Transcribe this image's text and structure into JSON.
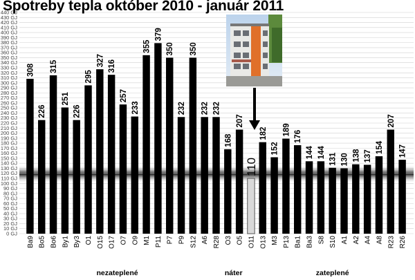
{
  "chart_data": {
    "type": "bar",
    "title": "Spotreby tepla október 2010 - január 2011",
    "ylim": [
      0,
      440
    ],
    "ytick_step": 10,
    "ytick_unit": "GJ",
    "grid": true,
    "categories": [
      "Ba9",
      "Bo5",
      "Bo6",
      "By1",
      "By3",
      "O1",
      "O15",
      "O17",
      "O7",
      "O9",
      "M1",
      "P11",
      "P7",
      "P9",
      "S12",
      "A6",
      "R28",
      "O3",
      "O5",
      "O11",
      "O13",
      "M3",
      "P13",
      "Ba1",
      "Ba3",
      "S8",
      "S10",
      "A1",
      "A2",
      "A4",
      "A8",
      "R23",
      "R26"
    ],
    "values": [
      308,
      226,
      315,
      251,
      226,
      295,
      327,
      316,
      257,
      233,
      355,
      379,
      350,
      232,
      350,
      232,
      232,
      168,
      207,
      110,
      182,
      152,
      189,
      176,
      144,
      144,
      131,
      130,
      138,
      137,
      154,
      207,
      147
    ],
    "highlighted": "O11",
    "reference_band": 120,
    "groups": [
      {
        "label": "nezateplené",
        "from": "Ba9",
        "to": "A6"
      },
      {
        "label": "náter",
        "from": "R28",
        "to": "O11"
      },
      {
        "label": "zateplené",
        "from": "O13",
        "to": "R26"
      }
    ],
    "colors": {
      "bar": "#000000",
      "highlight": "#d9d9d9",
      "grid": "#d0d0d0"
    }
  }
}
